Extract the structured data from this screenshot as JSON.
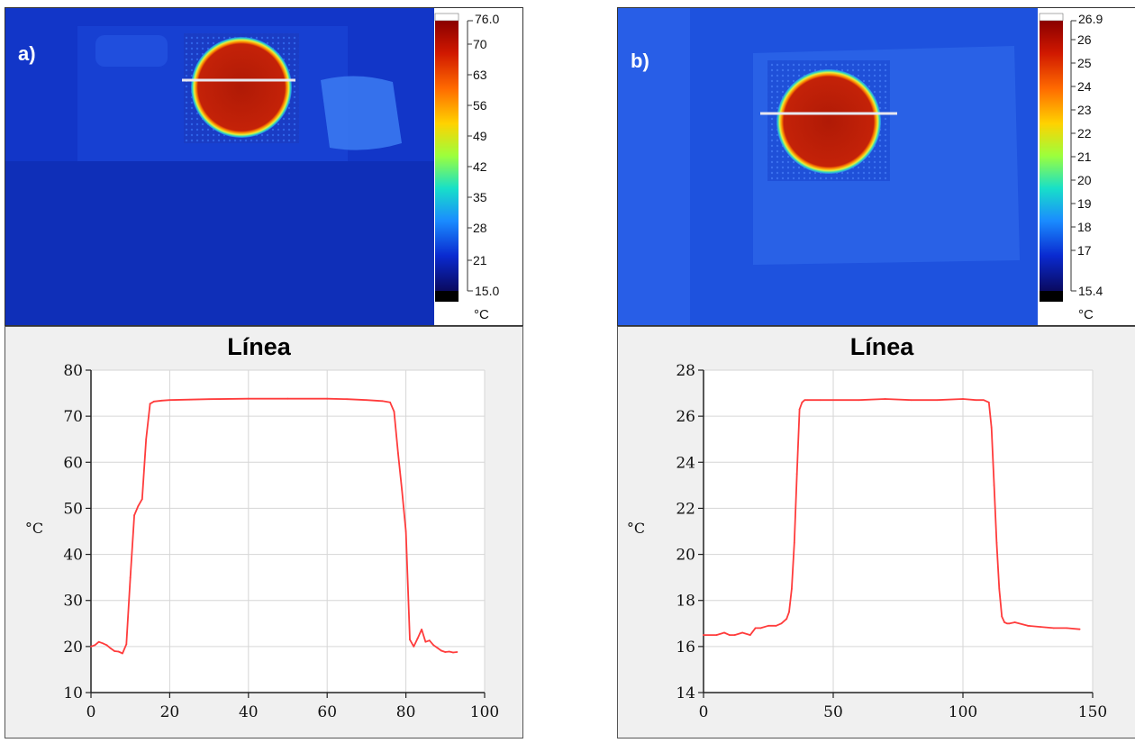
{
  "panels": [
    {
      "id": "a",
      "label": "a)",
      "colorbar": {
        "max_label": "76.0",
        "min_label": "15.0",
        "ticks": [
          "70",
          "63",
          "56",
          "49",
          "42",
          "35",
          "28",
          "21"
        ],
        "unit": "°C"
      }
    },
    {
      "id": "b",
      "label": "b)",
      "colorbar": {
        "max_label": "26.9",
        "min_label": "15.4",
        "ticks": [
          "26",
          "25",
          "24",
          "23",
          "22",
          "21",
          "20",
          "19",
          "18",
          "17"
        ],
        "unit": "°C"
      }
    }
  ],
  "colors": {
    "line": "#ff3c3c",
    "thermal_background": "#1540d8",
    "hot_spot": "#b41b08",
    "grid": "#d6d6d6"
  },
  "chart_data": [
    {
      "type": "line",
      "title": "Línea",
      "xlabel": "",
      "ylabel": "°C",
      "xlim": [
        0,
        100
      ],
      "ylim": [
        10,
        80
      ],
      "xticks": [
        0,
        20,
        40,
        60,
        80,
        100
      ],
      "yticks": [
        10,
        20,
        30,
        40,
        50,
        60,
        70,
        80
      ],
      "grid": true,
      "series": [
        {
          "x": [
            0,
            1,
            2,
            3,
            4,
            5,
            6,
            7,
            8,
            9,
            10,
            11,
            12,
            13,
            14,
            15,
            16,
            18,
            20,
            25,
            30,
            40,
            50,
            60,
            65,
            70,
            74,
            76,
            77,
            78,
            79,
            80,
            81,
            82,
            83,
            84,
            85,
            86,
            87,
            88,
            89,
            90,
            91,
            92,
            93
          ],
          "y": [
            20.0,
            20.3,
            21.0,
            20.7,
            20.3,
            19.6,
            19.0,
            18.9,
            18.5,
            20.5,
            35.0,
            48.5,
            50.5,
            52.0,
            65.0,
            72.7,
            73.2,
            73.4,
            73.5,
            73.6,
            73.7,
            73.8,
            73.8,
            73.8,
            73.7,
            73.5,
            73.3,
            73.0,
            71.0,
            62.0,
            54.0,
            45.0,
            21.5,
            20.0,
            21.8,
            23.7,
            21.0,
            21.3,
            20.3,
            19.7,
            19.1,
            18.8,
            18.9,
            18.7,
            18.8
          ]
        }
      ]
    },
    {
      "type": "line",
      "title": "Línea",
      "xlabel": "",
      "ylabel": "°C",
      "xlim": [
        0,
        150
      ],
      "ylim": [
        14,
        28
      ],
      "xticks": [
        0,
        50,
        100,
        150
      ],
      "yticks": [
        14,
        16,
        18,
        20,
        22,
        24,
        26,
        28
      ],
      "grid": true,
      "series": [
        {
          "x": [
            0,
            5,
            8,
            10,
            12,
            15,
            18,
            20,
            22,
            25,
            28,
            30,
            32,
            33,
            34,
            35,
            36,
            37,
            38,
            39,
            40,
            45,
            50,
            60,
            70,
            80,
            90,
            100,
            105,
            108,
            110,
            111,
            112,
            113,
            114,
            115,
            116,
            117,
            118,
            120,
            125,
            130,
            135,
            140,
            145
          ],
          "y": [
            16.5,
            16.5,
            16.6,
            16.5,
            16.5,
            16.6,
            16.5,
            16.8,
            16.8,
            16.9,
            16.9,
            17.0,
            17.2,
            17.5,
            18.5,
            20.5,
            23.5,
            26.3,
            26.6,
            26.7,
            26.7,
            26.7,
            26.7,
            26.7,
            26.75,
            26.7,
            26.7,
            26.75,
            26.7,
            26.7,
            26.6,
            25.5,
            23.0,
            20.5,
            18.5,
            17.3,
            17.05,
            17.0,
            17.0,
            17.05,
            16.9,
            16.85,
            16.8,
            16.8,
            16.75
          ]
        }
      ]
    }
  ]
}
